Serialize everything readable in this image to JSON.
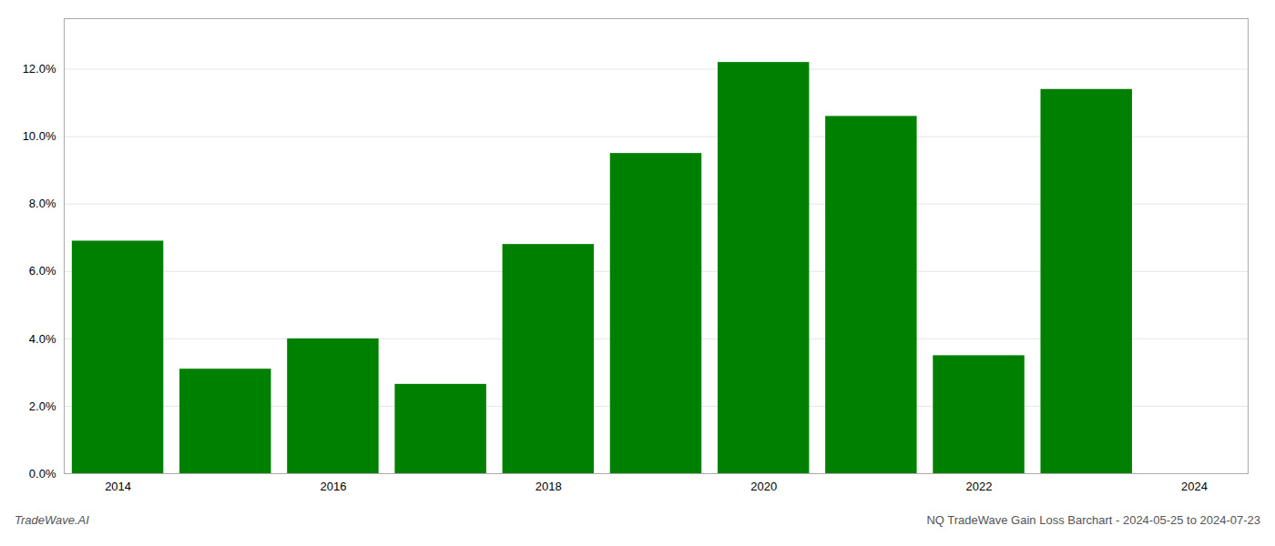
{
  "chart_data": {
    "type": "bar",
    "x": [
      2013.5,
      2014.5,
      2015.5,
      2016.5,
      2017.5,
      2018.5,
      2019.5,
      2020.5,
      2021.5,
      2022.5
    ],
    "values": [
      0.069,
      0.031,
      0.04,
      0.0265,
      0.068,
      0.095,
      0.122,
      0.106,
      0.035,
      0.114
    ],
    "color": "#008000",
    "xlim": [
      2013.0,
      2024.0
    ],
    "xticks": [
      {
        "value": 2013.5,
        "label": "2014"
      },
      {
        "value": 2015.5,
        "label": "2016"
      },
      {
        "value": 2017.5,
        "label": "2018"
      },
      {
        "value": 2019.5,
        "label": "2020"
      },
      {
        "value": 2021.5,
        "label": "2022"
      },
      {
        "value": 2023.5,
        "label": "2024"
      }
    ],
    "ylim": [
      0,
      0.135
    ],
    "yticks": [
      {
        "value": 0.0,
        "label": "0.0%"
      },
      {
        "value": 0.02,
        "label": "2.0%"
      },
      {
        "value": 0.04,
        "label": "4.0%"
      },
      {
        "value": 0.06,
        "label": "6.0%"
      },
      {
        "value": 0.08,
        "label": "8.0%"
      },
      {
        "value": 0.1,
        "label": "10.0%"
      },
      {
        "value": 0.12,
        "label": "12.0%"
      }
    ],
    "grid": true,
    "annotations": [
      "TradeWave.AI",
      "NQ TradeWave Gain Loss Barchart - 2024-05-25 to 2024-07-23"
    ]
  }
}
